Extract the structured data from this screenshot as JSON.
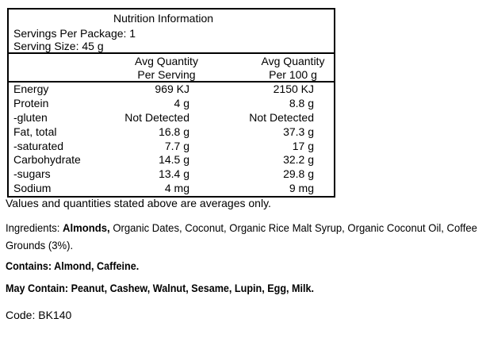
{
  "table": {
    "title": "Nutrition Information",
    "servings_per_package": "Servings Per Package: 1",
    "serving_size": "Serving Size: 45 g",
    "header": {
      "per_serving": {
        "line1": "Avg Quantity",
        "line2": "Per Serving"
      },
      "per_100g": {
        "line1": "Avg Quantity",
        "line2": "Per 100 g"
      }
    },
    "rows": [
      {
        "label": "Energy",
        "per_serving": "969 KJ",
        "per_100g": "2150 KJ"
      },
      {
        "label": "Protein",
        "per_serving": "4 g",
        "per_100g": "8.8 g"
      },
      {
        "label": "-gluten",
        "per_serving": "Not Detected",
        "per_100g": "Not Detected"
      },
      {
        "label": "Fat, total",
        "per_serving": "16.8 g",
        "per_100g": "37.3 g"
      },
      {
        "label": "-saturated",
        "per_serving": "7.7 g",
        "per_100g": "17 g"
      },
      {
        "label": "Carbohydrate",
        "per_serving": "14.5 g",
        "per_100g": "32.2 g"
      },
      {
        "label": "-sugars",
        "per_serving": "13.4 g",
        "per_100g": "29.8 g"
      },
      {
        "label": "Sodium",
        "per_serving": "4 mg",
        "per_100g": "9 mg"
      }
    ]
  },
  "notes": {
    "averages": "Values and quantities stated above are averages only.",
    "ingredients_label": "Ingredients: ",
    "ingredients_bold": "Almonds,",
    "ingredients_rest": " Organic Dates, Coconut, Organic Rice Malt Syrup, Organic Coconut Oil, Coffee Grounds (3%).",
    "contains": "Contains: Almond, Caffeine.",
    "may_contain": "May Contain: Peanut, Cashew, Walnut, Sesame, Lupin, Egg, Milk.",
    "code": "Code: BK140"
  }
}
